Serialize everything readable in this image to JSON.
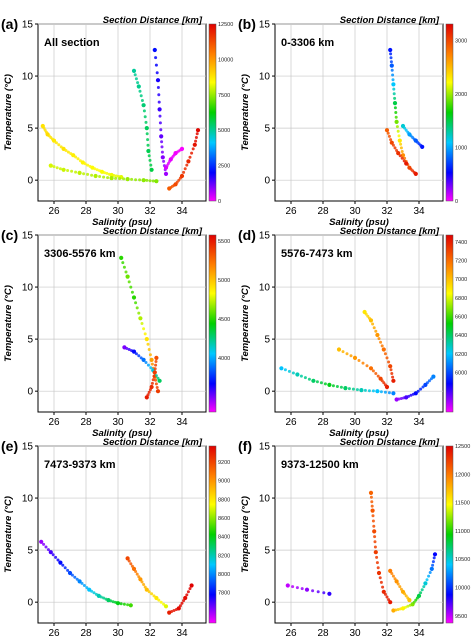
{
  "figure": {
    "colors": {
      "colorbar": [
        "#ff00ff",
        "#0000ff",
        "#00c8ff",
        "#00d000",
        "#ffff00",
        "#ff8000",
        "#e00000"
      ],
      "grid": "#c8c8c8",
      "axis": "#000000"
    }
  },
  "chart_data": [
    {
      "type": "scatter",
      "panel_label": "(a)",
      "annotation": "All section",
      "top_label": "Section Distance [km]",
      "xlabel": "Salinity (psu)",
      "ylabel": "Temperature (°C)",
      "xlim": [
        25,
        35.5
      ],
      "ylim": [
        -2,
        15
      ],
      "xticks": [
        26,
        28,
        30,
        32,
        34
      ],
      "yticks": [
        0,
        5,
        10,
        15
      ],
      "grid": true,
      "colorbar": {
        "min": 0,
        "max": 12500,
        "ticks": [
          0,
          2500,
          5000,
          7500,
          10000,
          12500
        ]
      },
      "series": [
        {
          "values": [
            [
              25.3,
              5.2,
              8800
            ],
            [
              25.6,
              4.4,
              8900
            ],
            [
              26.0,
              3.8,
              8700
            ],
            [
              26.6,
              3.0,
              8800
            ],
            [
              27.2,
              2.4,
              8600
            ],
            [
              27.8,
              1.7,
              8500
            ],
            [
              28.4,
              1.2,
              8400
            ],
            [
              29.0,
              0.8,
              8300
            ],
            [
              29.6,
              0.5,
              8200
            ],
            [
              30.2,
              0.3,
              8100
            ]
          ]
        },
        {
          "values": [
            [
              25.8,
              1.4,
              8000
            ],
            [
              26.6,
              1.0,
              7900
            ],
            [
              27.6,
              0.7,
              7800
            ],
            [
              28.6,
              0.4,
              7700
            ],
            [
              29.6,
              0.2,
              7600
            ],
            [
              30.6,
              0.1,
              7500
            ],
            [
              31.6,
              0.0,
              7400
            ],
            [
              32.4,
              -0.1,
              7300
            ]
          ]
        },
        {
          "values": [
            [
              31.0,
              10.5,
              5000
            ],
            [
              31.3,
              9.0,
              5100
            ],
            [
              31.6,
              7.2,
              5300
            ],
            [
              31.8,
              5.0,
              5500
            ],
            [
              31.9,
              2.8,
              5600
            ],
            [
              32.1,
              1.0,
              5700
            ]
          ]
        },
        {
          "values": [
            [
              32.3,
              12.5,
              2200
            ],
            [
              32.5,
              9.6,
              1900
            ],
            [
              32.6,
              6.8,
              1600
            ],
            [
              32.7,
              4.2,
              1300
            ],
            [
              32.8,
              2.2,
              1000
            ],
            [
              33.0,
              0.6,
              800
            ]
          ]
        },
        {
          "values": [
            [
              33.2,
              -0.8,
              11000
            ],
            [
              33.6,
              -0.4,
              11300
            ],
            [
              34.0,
              0.4,
              11600
            ],
            [
              34.4,
              1.8,
              11900
            ],
            [
              34.8,
              3.4,
              12200
            ],
            [
              35.0,
              4.8,
              12400
            ]
          ]
        },
        {
          "values": [
            [
              33.0,
              1.2,
              300
            ],
            [
              33.3,
              2.0,
              200
            ],
            [
              33.6,
              2.6,
              100
            ],
            [
              34.0,
              3.0,
              50
            ]
          ]
        }
      ]
    },
    {
      "type": "scatter",
      "panel_label": "(b)",
      "annotation": "0-3306 km",
      "top_label": "Section Distance [km]",
      "xlabel": "Salinity (psu)",
      "ylabel": "Temperature (°C)",
      "xlim": [
        25,
        35.5
      ],
      "ylim": [
        -2,
        15
      ],
      "xticks": [
        26,
        28,
        30,
        32,
        34
      ],
      "yticks": [
        0,
        5,
        10,
        15
      ],
      "grid": true,
      "colorbar": {
        "min": 0,
        "max": 3306,
        "ticks": [
          0,
          1000,
          2000,
          3000
        ]
      },
      "series": [
        {
          "values": [
            [
              32.2,
              12.5,
              600
            ],
            [
              32.3,
              11.0,
              800
            ],
            [
              32.4,
              9.2,
              1100
            ],
            [
              32.5,
              7.4,
              1500
            ],
            [
              32.6,
              5.6,
              1900
            ],
            [
              32.8,
              3.8,
              2300
            ],
            [
              33.0,
              2.4,
              2700
            ],
            [
              33.4,
              1.2,
              3000
            ],
            [
              33.8,
              0.6,
              3200
            ]
          ]
        },
        {
          "values": [
            [
              33.0,
              5.2,
              1200
            ],
            [
              33.4,
              4.4,
              1000
            ],
            [
              33.8,
              3.8,
              800
            ],
            [
              34.2,
              3.2,
              600
            ]
          ]
        },
        {
          "values": [
            [
              32.0,
              4.8,
              2900
            ],
            [
              32.3,
              3.6,
              3000
            ],
            [
              32.7,
              2.6,
              3100
            ],
            [
              33.2,
              1.6,
              3200
            ]
          ]
        }
      ]
    },
    {
      "type": "scatter",
      "panel_label": "(c)",
      "annotation": "3306-5576 km",
      "top_label": "Section Distance [km]",
      "xlabel": "Salinity (psu)",
      "ylabel": "Temperature (°C)",
      "xlim": [
        25,
        35.5
      ],
      "ylim": [
        -2,
        15
      ],
      "xticks": [
        26,
        28,
        30,
        32,
        34
      ],
      "yticks": [
        0,
        5,
        10,
        15
      ],
      "grid": true,
      "colorbar": {
        "min": 3306,
        "max": 5576,
        "ticks": [
          4000,
          4500,
          5000,
          5500
        ]
      },
      "series": [
        {
          "values": [
            [
              30.2,
              12.8,
              4500
            ],
            [
              30.6,
              11.0,
              4600
            ],
            [
              31.0,
              9.0,
              4500
            ],
            [
              31.4,
              7.0,
              4700
            ],
            [
              31.8,
              5.0,
              4900
            ],
            [
              32.1,
              3.0,
              5100
            ],
            [
              32.3,
              1.4,
              5300
            ],
            [
              32.5,
              0.0,
              5400
            ]
          ]
        },
        {
          "values": [
            [
              30.4,
              4.2,
              3500
            ],
            [
              31.0,
              3.8,
              3700
            ],
            [
              31.6,
              3.0,
              3900
            ],
            [
              32.2,
              2.0,
              4100
            ],
            [
              32.6,
              1.0,
              4300
            ]
          ]
        },
        {
          "values": [
            [
              31.8,
              -0.6,
              5500
            ],
            [
              32.1,
              0.4,
              5450
            ],
            [
              32.3,
              1.8,
              5400
            ],
            [
              32.4,
              3.2,
              5350
            ]
          ]
        }
      ]
    },
    {
      "type": "scatter",
      "panel_label": "(d)",
      "annotation": "5576-7473 km",
      "top_label": "Section Distance [km]",
      "xlabel": "Salinity (psu)",
      "ylabel": "Temperature (°C)",
      "xlim": [
        25,
        35.5
      ],
      "ylim": [
        -2,
        15
      ],
      "xticks": [
        26,
        28,
        30,
        32,
        34
      ],
      "yticks": [
        0,
        5,
        10,
        15
      ],
      "grid": true,
      "colorbar": {
        "min": 5576,
        "max": 7473,
        "ticks": [
          6000,
          6200,
          6400,
          6600,
          6800,
          7000,
          7200,
          7400
        ]
      },
      "series": [
        {
          "values": [
            [
              25.4,
              2.2,
              6200
            ],
            [
              26.4,
              1.6,
              6300
            ],
            [
              27.4,
              1.0,
              6400
            ],
            [
              28.4,
              0.6,
              6500
            ],
            [
              29.4,
              0.3,
              6400
            ],
            [
              30.4,
              0.1,
              6300
            ],
            [
              31.4,
              0.0,
              6200
            ],
            [
              32.4,
              -0.2,
              6100
            ]
          ]
        },
        {
          "values": [
            [
              29.0,
              4.0,
              7000
            ],
            [
              30.0,
              3.2,
              7100
            ],
            [
              31.0,
              2.2,
              7200
            ],
            [
              31.6,
              1.2,
              7300
            ],
            [
              32.0,
              0.4,
              7400
            ]
          ]
        },
        {
          "values": [
            [
              30.6,
              7.6,
              6900
            ],
            [
              31.0,
              6.8,
              7000
            ],
            [
              31.4,
              5.4,
              7100
            ],
            [
              31.8,
              4.0,
              7200
            ],
            [
              32.2,
              2.4,
              7300
            ],
            [
              32.4,
              1.0,
              7400
            ]
          ]
        },
        {
          "values": [
            [
              32.6,
              -0.8,
              5700
            ],
            [
              33.2,
              -0.6,
              5800
            ],
            [
              33.8,
              -0.2,
              5900
            ],
            [
              34.4,
              0.6,
              6000
            ],
            [
              34.9,
              1.4,
              6100
            ]
          ]
        }
      ]
    },
    {
      "type": "scatter",
      "panel_label": "(e)",
      "annotation": "7473-9373 km",
      "top_label": "Section Distance [km]",
      "xlabel": "Salinity (psu)",
      "ylabel": "Temperature (°C)",
      "xlim": [
        25,
        35.5
      ],
      "ylim": [
        -2,
        15
      ],
      "xticks": [
        26,
        28,
        30,
        32,
        34
      ],
      "yticks": [
        0,
        5,
        10,
        15
      ],
      "grid": true,
      "colorbar": {
        "min": 7473,
        "max": 9373,
        "ticks": [
          7800,
          8000,
          8200,
          8400,
          8600,
          8800,
          9000,
          9200
        ]
      },
      "series": [
        {
          "values": [
            [
              25.2,
              5.8,
              7600
            ],
            [
              25.8,
              4.8,
              7700
            ],
            [
              26.4,
              3.8,
              7800
            ],
            [
              27.0,
              2.8,
              7900
            ],
            [
              27.6,
              2.0,
              8000
            ],
            [
              28.2,
              1.2,
              8100
            ],
            [
              28.8,
              0.6,
              8200
            ],
            [
              29.4,
              0.2,
              8300
            ],
            [
              30.0,
              -0.1,
              8400
            ],
            [
              30.8,
              -0.3,
              8500
            ]
          ]
        },
        {
          "values": [
            [
              30.6,
              4.2,
              9200
            ],
            [
              31.0,
              3.2,
              9100
            ],
            [
              31.4,
              2.2,
              9000
            ],
            [
              31.8,
              1.2,
              8900
            ],
            [
              32.4,
              0.4,
              8800
            ],
            [
              33.0,
              -0.4,
              8700
            ]
          ]
        },
        {
          "values": [
            [
              33.2,
              -1.0,
              9300
            ],
            [
              33.8,
              -0.6,
              9350
            ],
            [
              34.2,
              0.4,
              9350
            ],
            [
              34.6,
              1.6,
              9370
            ]
          ]
        }
      ]
    },
    {
      "type": "scatter",
      "panel_label": "(f)",
      "annotation": "9373-12500 km",
      "top_label": "Section Distance [km]",
      "xlabel": "Salinity (psu)",
      "ylabel": "Temperature (°C)",
      "xlim": [
        25,
        35.5
      ],
      "ylim": [
        -2,
        15
      ],
      "xticks": [
        26,
        28,
        30,
        32,
        34
      ],
      "yticks": [
        0,
        5,
        10,
        15
      ],
      "grid": true,
      "colorbar": {
        "min": 9373,
        "max": 12500,
        "ticks": [
          9500,
          10000,
          10500,
          11000,
          11500,
          12000,
          12500
        ]
      },
      "series": [
        {
          "values": [
            [
              25.8,
              1.6,
              9500
            ],
            [
              27.0,
              1.2,
              9600
            ],
            [
              28.4,
              0.8,
              9800
            ]
          ]
        },
        {
          "values": [
            [
              31.0,
              10.5,
              12100
            ],
            [
              31.1,
              8.8,
              12150
            ],
            [
              31.2,
              6.8,
              12200
            ],
            [
              31.3,
              4.8,
              12250
            ],
            [
              31.5,
              2.8,
              12300
            ],
            [
              31.8,
              1.0,
              12350
            ],
            [
              32.2,
              0.0,
              12400
            ]
          ]
        },
        {
          "values": [
            [
              32.4,
              -0.8,
              11800
            ],
            [
              33.0,
              -0.6,
              11500
            ],
            [
              33.6,
              -0.2,
              11200
            ],
            [
              34.0,
              0.6,
              10800
            ],
            [
              34.4,
              1.8,
              10500
            ],
            [
              34.8,
              3.2,
              10200
            ],
            [
              35.0,
              4.6,
              9900
            ]
          ]
        },
        {
          "values": [
            [
              32.2,
              3.0,
              12000
            ],
            [
              32.6,
              2.0,
              11900
            ],
            [
              33.0,
              1.0,
              11800
            ],
            [
              33.4,
              0.2,
              11700
            ]
          ]
        }
      ]
    }
  ]
}
